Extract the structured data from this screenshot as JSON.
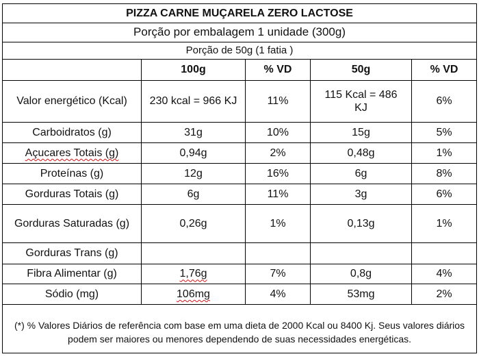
{
  "title": "PIZZA CARNE MUÇARELA ZERO LACTOSE",
  "porcao_embalagem": "Porção por embalagem 1 unidade (300g)",
  "porcao_fatia": "Porção de 50g (1 fatia )",
  "headers": [
    "",
    "100g",
    "% VD",
    "50g",
    "% VD"
  ],
  "rows": [
    {
      "name": "Valor energético (Kcal)",
      "v100": "230 kcal = 966 KJ",
      "vd100": "11%",
      "v50": "115 Kcal = 486 KJ",
      "vd50": "6%"
    },
    {
      "name": "Carboidratos (g)",
      "v100": "31g",
      "vd100": "10%",
      "v50": "15g",
      "vd50": "5%"
    },
    {
      "name": "Açucares Totais (g)",
      "v100": "0,94g",
      "vd100": "2%",
      "v50": "0,48g",
      "vd50": "1%"
    },
    {
      "name": "Proteínas (g)",
      "v100": "12g",
      "vd100": "16%",
      "v50": "6g",
      "vd50": "8%"
    },
    {
      "name": "Gorduras Totais (g)",
      "v100": "6g",
      "vd100": "11%",
      "v50": "3g",
      "vd50": "6%"
    },
    {
      "name": "Gorduras Saturadas (g)",
      "v100": "0,26g",
      "vd100": "1%",
      "v50": "0,13g",
      "vd50": "1%"
    },
    {
      "name": "Gorduras Trans (g)",
      "v100": "",
      "vd100": "",
      "v50": "",
      "vd50": ""
    },
    {
      "name": "Fibra Alimentar (g)",
      "v100": "1,76g",
      "vd100": "7%",
      "v50": "0,8g",
      "vd50": "4%"
    },
    {
      "name": "Sódio (mg)",
      "v100": "106mg",
      "vd100": "4%",
      "v50": "53mg",
      "vd50": "2%"
    }
  ],
  "footnote": "(*) % Valores Diários de referência com base em uma dieta de 2000 Kcal ou 8400 Kj. Seus valores diários podem ser maiores ou menores dependendo de suas necessidades energéticas."
}
